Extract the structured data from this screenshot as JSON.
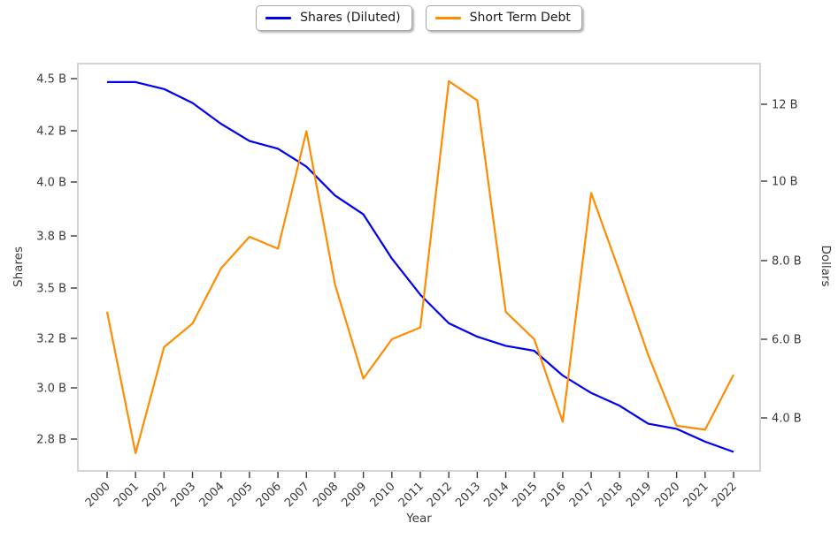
{
  "legend": {
    "items": [
      {
        "label": "Shares (Diluted)",
        "color": "#0000f0"
      },
      {
        "label": "Short Term Debt",
        "color": "#ff8c00"
      }
    ]
  },
  "chart_data": {
    "type": "line",
    "xlabel": "Year",
    "ylabel_left": "Shares",
    "ylabel_right": "Dollars",
    "x_years": [
      2000,
      2001,
      2002,
      2003,
      2004,
      2005,
      2006,
      2007,
      2008,
      2009,
      2010,
      2011,
      2012,
      2013,
      2014,
      2015,
      2016,
      2017,
      2018,
      2019,
      2020,
      2021,
      2022
    ],
    "x_tick_labels": [
      "2000",
      "2001",
      "2002",
      "2003",
      "2004",
      "2005",
      "2006",
      "2007",
      "2008",
      "2009",
      "2010",
      "2011",
      "2012",
      "2013",
      "2014",
      "2015",
      "2016",
      "2017",
      "2018",
      "2019",
      "2020",
      "2021",
      "2022"
    ],
    "left_axis": {
      "tick_labels": [
        "4.5 B",
        "4.2 B",
        "4.0 B",
        "3.8 B",
        "3.5 B",
        "3.2 B",
        "3.0 B",
        "2.8 B"
      ],
      "tick_values": [
        4.5,
        4.2,
        4.0,
        3.8,
        3.5,
        3.2,
        3.0,
        2.8
      ],
      "unit": "B shares"
    },
    "right_axis": {
      "tick_labels": [
        "12 B",
        "10 B",
        "8.0 B",
        "6.0 B",
        "4.0 B"
      ],
      "tick_values": [
        12,
        10,
        8,
        6,
        4
      ],
      "unit": "B dollars"
    },
    "series": [
      {
        "name": "Shares (Diluted)",
        "axis": "left",
        "color": "#0000f0",
        "values": [
          4.48,
          4.48,
          4.44,
          4.36,
          4.24,
          4.16,
          4.13,
          4.06,
          3.95,
          3.88,
          3.67,
          3.46,
          3.29,
          3.21,
          3.17,
          3.15,
          3.05,
          2.98,
          2.93,
          2.86,
          2.84,
          2.79,
          2.75
        ]
      },
      {
        "name": "Short Term Debt",
        "axis": "right",
        "color": "#ff8c00",
        "values": [
          6.7,
          3.1,
          5.8,
          6.4,
          7.8,
          8.6,
          8.3,
          11.3,
          7.4,
          5.0,
          6.0,
          6.3,
          12.6,
          12.1,
          6.7,
          6.0,
          3.9,
          9.7,
          7.7,
          5.6,
          3.8,
          3.7,
          5.1
        ]
      }
    ],
    "grid": false,
    "legend_position": "top-center"
  }
}
